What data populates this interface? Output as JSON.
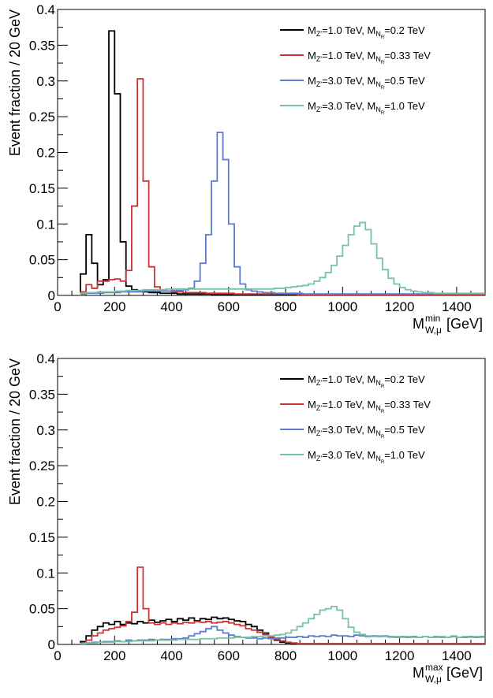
{
  "chart_data": [
    {
      "type": "line",
      "step": true,
      "bin_width": 20,
      "ylabel": "Event fraction / 20 GeV",
      "xlabel": {
        "main": "M",
        "sup": "min",
        "sub": "W,μ",
        "unit": " [GeV]"
      },
      "xlim": [
        0,
        1500
      ],
      "ylim": [
        0,
        0.4
      ],
      "x_ticks": [
        0,
        200,
        400,
        600,
        800,
        1000,
        1200,
        1400
      ],
      "y_ticks": [
        0,
        0.05,
        0.1,
        0.15,
        0.2,
        0.25,
        0.3,
        0.35,
        0.4
      ],
      "y_tick_labels": [
        "0",
        "0.05",
        "0.1",
        "0.15",
        "0.2",
        "0.25",
        "0.3",
        "0.35",
        "0.4"
      ],
      "legend_position": "top-right",
      "grid": false,
      "series": [
        {
          "name": "M_Z'=1.0 TeV, M_NR=0.2 TeV",
          "legend": {
            "a": "=1.0 TeV, M",
            "b": "=0.2 TeV"
          },
          "color": "#000000",
          "x_start": 80,
          "values": [
            0.03,
            0.085,
            0.045,
            0.015,
            0.022,
            0.37,
            0.282,
            0.075,
            0.013,
            0.008,
            0.006,
            0.005,
            0.004,
            0.004,
            0.003,
            0.003,
            0.003,
            0.002,
            0.002,
            0.002,
            0.002,
            0.002,
            0.002,
            0.001,
            0.001,
            0.001,
            0.001,
            0.001,
            0.001,
            0.001,
            0.001,
            0.001,
            0.001,
            0.001,
            0.001,
            0.001,
            0.001,
            0.001,
            0.001,
            0.001,
            0.001,
            0.001,
            0.001,
            0.001,
            0.001,
            0.001,
            0.001,
            0.001,
            0.001,
            0.001,
            0.001,
            0.001,
            0.001,
            0.001,
            0.001,
            0.001,
            0.001,
            0.001,
            0.001,
            0.001,
            0.001,
            0.001,
            0.001,
            0.001,
            0.001,
            0.001,
            0.001,
            0.001,
            0.001,
            0.001,
            0.001
          ]
        },
        {
          "name": "M_Z'=1.0 TeV, M_NR=0.33 TeV",
          "legend": {
            "a": "=1.0 TeV, M",
            "b": "=0.33 TeV"
          },
          "color": "#cc3333",
          "x_start": 80,
          "values": [
            0.005,
            0.015,
            0.01,
            0.02,
            0.02,
            0.022,
            0.023,
            0.02,
            0.035,
            0.125,
            0.303,
            0.16,
            0.04,
            0.012,
            0.008,
            0.006,
            0.005,
            0.005,
            0.004,
            0.004,
            0.004,
            0.004,
            0.003,
            0.003,
            0.003,
            0.003,
            0.003,
            0.002,
            0.002,
            0.002,
            0.002,
            0.002,
            0.002,
            0.002,
            0.002,
            0.002,
            0.002,
            0.002,
            0.001,
            0.001,
            0.001,
            0.001,
            0.001,
            0.001,
            0.001,
            0.001,
            0.001,
            0.001,
            0.001,
            0.001,
            0.001,
            0.001,
            0.001,
            0.001,
            0.001,
            0.001,
            0.001,
            0.001,
            0.001,
            0.001,
            0.001,
            0.001,
            0.001,
            0.001,
            0.001,
            0.001,
            0.001,
            0.001,
            0.001,
            0.001,
            0.001
          ]
        },
        {
          "name": "M_Z'=3.0 TeV, M_NR=0.5 TeV",
          "legend": {
            "a": "=3.0 TeV, M",
            "b": "=0.5 TeV"
          },
          "color": "#5c7bd4",
          "x_start": 80,
          "values": [
            0.002,
            0.003,
            0.003,
            0.003,
            0.004,
            0.004,
            0.004,
            0.005,
            0.005,
            0.005,
            0.005,
            0.006,
            0.006,
            0.006,
            0.006,
            0.006,
            0.007,
            0.007,
            0.008,
            0.01,
            0.02,
            0.045,
            0.085,
            0.16,
            0.228,
            0.19,
            0.1,
            0.04,
            0.016,
            0.008,
            0.006,
            0.005,
            0.004,
            0.004,
            0.003,
            0.003,
            0.003,
            0.003,
            0.003,
            0.002,
            0.002,
            0.002,
            0.002,
            0.002,
            0.002,
            0.002,
            0.002,
            0.002,
            0.002,
            0.002,
            0.002,
            0.002,
            0.002,
            0.002,
            0.002,
            0.002,
            0.002,
            0.002,
            0.002,
            0.002,
            0.002,
            0.002,
            0.002,
            0.002,
            0.002,
            0.002,
            0.002,
            0.002,
            0.002,
            0.002,
            0.002
          ]
        },
        {
          "name": "M_Z'=3.0 TeV, M_NR=1.0 TeV",
          "legend": {
            "a": "=3.0 TeV, M",
            "b": "=1.0 TeV"
          },
          "color": "#77c4a0",
          "x_start": 80,
          "values": [
            0.003,
            0.004,
            0.004,
            0.005,
            0.005,
            0.005,
            0.006,
            0.006,
            0.007,
            0.007,
            0.007,
            0.008,
            0.008,
            0.008,
            0.008,
            0.009,
            0.009,
            0.009,
            0.009,
            0.009,
            0.009,
            0.009,
            0.009,
            0.009,
            0.009,
            0.009,
            0.009,
            0.009,
            0.009,
            0.009,
            0.009,
            0.009,
            0.009,
            0.009,
            0.01,
            0.01,
            0.011,
            0.012,
            0.013,
            0.014,
            0.016,
            0.02,
            0.025,
            0.032,
            0.042,
            0.055,
            0.07,
            0.085,
            0.097,
            0.102,
            0.092,
            0.072,
            0.052,
            0.036,
            0.024,
            0.016,
            0.011,
            0.008,
            0.006,
            0.005,
            0.004,
            0.004,
            0.003,
            0.003,
            0.003,
            0.003,
            0.003,
            0.003,
            0.003,
            0.003,
            0.003
          ]
        }
      ]
    },
    {
      "type": "line",
      "step": true,
      "bin_width": 20,
      "ylabel": "Event fraction / 20 GeV",
      "xlabel": {
        "main": "M",
        "sup": "max",
        "sub": "W,μ",
        "unit": " [GeV]"
      },
      "xlim": [
        0,
        1500
      ],
      "ylim": [
        0,
        0.4
      ],
      "x_ticks": [
        0,
        200,
        400,
        600,
        800,
        1000,
        1200,
        1400
      ],
      "y_ticks": [
        0,
        0.05,
        0.1,
        0.15,
        0.2,
        0.25,
        0.3,
        0.35,
        0.4
      ],
      "y_tick_labels": [
        "0",
        "0.05",
        "0.1",
        "0.15",
        "0.2",
        "0.25",
        "0.3",
        "0.35",
        "0.4"
      ],
      "legend_position": "top-right",
      "grid": false,
      "series": [
        {
          "name": "M_Z'=1.0 TeV, M_NR=0.2 TeV",
          "legend": {
            "a": "=1.0 TeV, M",
            "b": "=0.2 TeV"
          },
          "color": "#000000",
          "x_start": 80,
          "values": [
            0.004,
            0.012,
            0.02,
            0.025,
            0.03,
            0.028,
            0.032,
            0.028,
            0.03,
            0.029,
            0.032,
            0.03,
            0.034,
            0.031,
            0.033,
            0.035,
            0.032,
            0.036,
            0.034,
            0.037,
            0.033,
            0.036,
            0.035,
            0.038,
            0.036,
            0.037,
            0.035,
            0.033,
            0.032,
            0.028,
            0.025,
            0.02,
            0.016,
            0.01,
            0.006,
            0.003,
            0.002,
            0.001,
            0.001,
            0.001,
            0.001,
            0.001,
            0.001,
            0.001,
            0.001,
            0.001,
            0.001,
            0.001,
            0.001,
            0.001,
            0.001,
            0.001,
            0.001,
            0.001,
            0.001,
            0.001,
            0.001,
            0.001,
            0.001,
            0.001,
            0.001,
            0.001,
            0.001,
            0.001,
            0.001,
            0.001,
            0.001,
            0.001,
            0.001,
            0.001,
            0.001
          ]
        },
        {
          "name": "M_Z'=1.0 TeV, M_NR=0.33 TeV",
          "legend": {
            "a": "=1.0 TeV, M",
            "b": "=0.33 TeV"
          },
          "color": "#cc3333",
          "x_start": 80,
          "values": [
            0.002,
            0.006,
            0.012,
            0.016,
            0.02,
            0.022,
            0.024,
            0.026,
            0.032,
            0.045,
            0.108,
            0.05,
            0.03,
            0.028,
            0.03,
            0.028,
            0.03,
            0.029,
            0.031,
            0.03,
            0.032,
            0.031,
            0.032,
            0.03,
            0.031,
            0.032,
            0.03,
            0.028,
            0.026,
            0.022,
            0.02,
            0.017,
            0.014,
            0.01,
            0.007,
            0.005,
            0.003,
            0.002,
            0.001,
            0.001,
            0.001,
            0.001,
            0.001,
            0.001,
            0.001,
            0.001,
            0.001,
            0.001,
            0.001,
            0.001,
            0.001,
            0.001,
            0.001,
            0.001,
            0.001,
            0.001,
            0.001,
            0.001,
            0.001,
            0.001,
            0.001,
            0.001,
            0.001,
            0.001,
            0.001,
            0.001,
            0.001,
            0.001,
            0.001,
            0.001,
            0.001
          ]
        },
        {
          "name": "M_Z'=3.0 TeV, M_NR=0.5 TeV",
          "legend": {
            "a": "=3.0 TeV, M",
            "b": "=0.5 TeV"
          },
          "color": "#5c7bd4",
          "x_start": 80,
          "values": [
            0.001,
            0.002,
            0.003,
            0.003,
            0.004,
            0.004,
            0.005,
            0.004,
            0.006,
            0.005,
            0.006,
            0.006,
            0.007,
            0.006,
            0.007,
            0.007,
            0.008,
            0.008,
            0.009,
            0.012,
            0.015,
            0.018,
            0.022,
            0.025,
            0.02,
            0.016,
            0.013,
            0.011,
            0.01,
            0.009,
            0.009,
            0.008,
            0.009,
            0.008,
            0.009,
            0.009,
            0.01,
            0.01,
            0.011,
            0.01,
            0.012,
            0.011,
            0.012,
            0.011,
            0.013,
            0.012,
            0.012,
            0.011,
            0.013,
            0.012,
            0.011,
            0.012,
            0.011,
            0.012,
            0.011,
            0.01,
            0.011,
            0.01,
            0.011,
            0.01,
            0.011,
            0.01,
            0.011,
            0.01,
            0.01,
            0.011,
            0.01,
            0.01,
            0.011,
            0.01,
            0.011
          ]
        },
        {
          "name": "M_Z'=3.0 TeV, M_NR=1.0 TeV",
          "legend": {
            "a": "=3.0 TeV, M",
            "b": "=1.0 TeV"
          },
          "color": "#77c4a0",
          "x_start": 80,
          "values": [
            0.001,
            0.002,
            0.002,
            0.003,
            0.003,
            0.003,
            0.004,
            0.004,
            0.004,
            0.005,
            0.005,
            0.005,
            0.005,
            0.006,
            0.006,
            0.006,
            0.006,
            0.007,
            0.007,
            0.007,
            0.007,
            0.008,
            0.008,
            0.008,
            0.009,
            0.009,
            0.009,
            0.01,
            0.01,
            0.01,
            0.011,
            0.011,
            0.012,
            0.012,
            0.013,
            0.014,
            0.016,
            0.02,
            0.025,
            0.03,
            0.036,
            0.042,
            0.048,
            0.05,
            0.053,
            0.048,
            0.036,
            0.024,
            0.017,
            0.014,
            0.012,
            0.011,
            0.012,
            0.011,
            0.01,
            0.011,
            0.01,
            0.011,
            0.01,
            0.01,
            0.011,
            0.01,
            0.01,
            0.011,
            0.01,
            0.012,
            0.01,
            0.011,
            0.01,
            0.011,
            0.01
          ]
        }
      ]
    }
  ]
}
